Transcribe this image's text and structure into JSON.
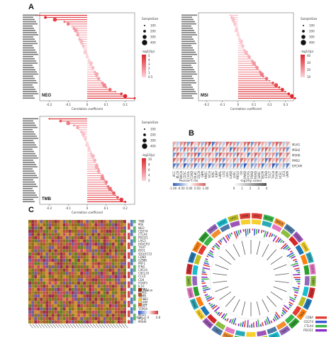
{
  "figure": {
    "panel_labels": [
      "A",
      "B",
      "C"
    ]
  },
  "panel_a": {
    "plots": [
      {
        "name": "NEO",
        "xlabel": "Correlation coefficient",
        "x_ticks": [
          "-0.2",
          "-0.1",
          "0",
          "0.1",
          "0.2"
        ],
        "legend": {
          "size_title": "SampleSize",
          "size_values": [
            "100",
            "200",
            "300",
            "400"
          ],
          "color_title": "-log10(p)",
          "color_values": [
            "5",
            "4",
            "3",
            "2",
            "1",
            "0.5"
          ]
        },
        "values": [
          -0.27,
          -0.22,
          -0.17,
          -0.12,
          -0.1,
          -0.08,
          -0.07,
          -0.06,
          -0.05,
          -0.05,
          -0.04,
          -0.04,
          -0.03,
          -0.03,
          -0.02,
          -0.02,
          -0.01,
          -0.01,
          0,
          0,
          0.01,
          0.01,
          0.02,
          0.02,
          0.03,
          0.03,
          0.04,
          0.05,
          0.05,
          0.06,
          0.07,
          0.08,
          0.09,
          0.1,
          0.12,
          0.15,
          0.18,
          0.2,
          0.25
        ]
      },
      {
        "name": "MSI",
        "xlabel": "Correlation coefficient",
        "x_ticks": [
          "-0.2",
          "-0.1",
          "0",
          "0.1",
          "0.2",
          "0.3"
        ],
        "legend": {
          "size_title": "SampleSize",
          "size_values": [
            "100",
            "200",
            "300",
            "400"
          ],
          "color_title": "-log10(p)",
          "color_values": [
            "40",
            "30",
            "20",
            "10"
          ]
        },
        "values": [
          -0.05,
          -0.04,
          -0.03,
          -0.03,
          -0.02,
          -0.02,
          -0.01,
          -0.01,
          0,
          0,
          0.01,
          0.01,
          0.02,
          0.02,
          0.03,
          0.03,
          0.04,
          0.05,
          0.06,
          0.07,
          0.08,
          0.09,
          0.1,
          0.11,
          0.12,
          0.13,
          0.14,
          0.15,
          0.16,
          0.18,
          0.2,
          0.22,
          0.24,
          0.26,
          0.28,
          0.3,
          0.32,
          0.34,
          0.36
        ]
      },
      {
        "name": "TMB",
        "xlabel": "Correlation coefficient",
        "x_ticks": [
          "-0.2",
          "-0.1",
          "0",
          "0.1",
          "0.2"
        ],
        "legend": {
          "size_title": "SampleSize",
          "size_values": [
            "100",
            "200",
            "300",
            "400"
          ],
          "color_title": "-log10(p)",
          "color_values": [
            "10",
            "8",
            "6",
            "4",
            "2"
          ]
        },
        "values": [
          -0.2,
          -0.14,
          -0.1,
          -0.07,
          -0.05,
          -0.04,
          -0.03,
          -0.02,
          -0.02,
          -0.01,
          -0.01,
          0,
          0,
          0.01,
          0.01,
          0.02,
          0.02,
          0.03,
          0.03,
          0.04,
          0.04,
          0.05,
          0.05,
          0.06,
          0.06,
          0.07,
          0.08,
          0.08,
          0.09,
          0.1,
          0.1,
          0.11,
          0.12,
          0.13,
          0.14,
          0.15,
          0.16,
          0.18,
          0.2
        ]
      }
    ]
  },
  "panel_b": {
    "row_labels": [
      "MLH1",
      "MSH2",
      "MSH6",
      "PMS2",
      "EPCAM"
    ],
    "col_labels": [
      "ACC",
      "BLCA",
      "BRCA",
      "CESC",
      "CHOL",
      "COAD",
      "DLBC",
      "ESCA",
      "GBM",
      "HNSC",
      "KICH",
      "KIRC",
      "KIRP",
      "LAML",
      "LGG",
      "LIHC",
      "LUAD",
      "LUSC",
      "MESO",
      "OV",
      "PAAD",
      "PCPG",
      "PRAD",
      "READ",
      "SARC",
      "SKCM",
      "STAD",
      "TGCT",
      "THCA",
      "THYM",
      "UCEC",
      "UCS",
      "UVM"
    ],
    "legend_title_left": "Pearson's rho",
    "legend_title_right": "-log10(p value)",
    "legend_ticks_left": [
      "-1.00",
      "-0.50",
      "0.00",
      "0.50",
      "1.00"
    ],
    "legend_ticks_right": [
      "0",
      "1",
      "2",
      "3",
      "4"
    ],
    "corr": [
      [
        0.2,
        -0.1,
        0.3,
        0.4,
        -0.3,
        0.5,
        0.1,
        0.3,
        -0.2,
        0.4,
        0.6,
        -0.4,
        0.3,
        0.2,
        -0.1,
        0.5,
        0.4,
        0.3,
        -0.2,
        0.1,
        0.4,
        0.5,
        -0.3,
        0.3,
        0.4,
        0.2,
        0.1,
        -0.2,
        0.3,
        0.5,
        0.4,
        -0.1,
        0.2
      ],
      [
        0.4,
        0.3,
        -0.2,
        0.5,
        0.3,
        0.4,
        -0.3,
        0.2,
        0.4,
        0.3,
        -0.1,
        0.5,
        0.4,
        -0.2,
        0.3,
        0.1,
        -0.4,
        0.5,
        0.3,
        0.2,
        -0.3,
        0.4,
        0.3,
        0.1,
        -0.2,
        0.4,
        0.5,
        0.3,
        -0.1,
        0.2,
        0.3,
        0.4,
        -0.3
      ],
      [
        -0.3,
        0.5,
        0.2,
        -0.1,
        0.4,
        0.3,
        0.5,
        -0.4,
        0.2,
        0.3,
        0.4,
        0.1,
        -0.3,
        0.5,
        0.2,
        0.4,
        0.3,
        -0.2,
        0.5,
        0.3,
        0.1,
        -0.4,
        0.2,
        0.5,
        0.3,
        -0.1,
        0.4,
        0.2,
        0.3,
        -0.3,
        0.5,
        0.1,
        0.4
      ],
      [
        0.5,
        0.2,
        0.4,
        -0.3,
        0.1,
        -0.2,
        0.4,
        0.3,
        0.5,
        -0.1,
        0.2,
        0.3,
        0.5,
        0.4,
        -0.3,
        0.2,
        0.1,
        0.4,
        -0.1,
        0.5,
        0.3,
        0.2,
        0.4,
        -0.2,
        0.1,
        0.3,
        -0.4,
        0.5,
        0.2,
        0.4,
        -0.2,
        0.3,
        0.1
      ],
      [
        -0.4,
        -0.3,
        0.1,
        -0.5,
        -0.2,
        0.3,
        -0.4,
        -0.1,
        -0.3,
        0.2,
        -0.5,
        -0.2,
        0.1,
        -0.3,
        -0.4,
        0.2,
        -0.1,
        -0.3,
        0.4,
        -0.2,
        -0.5,
        0.1,
        -0.3,
        -0.2,
        0.3,
        -0.4,
        -0.1,
        0.2,
        -0.5,
        -0.3,
        0.1,
        -0.2,
        -0.4
      ]
    ]
  },
  "panel_c_left": {
    "rows": 32,
    "cols": 34,
    "side_labels": [
      "TMB",
      "MSI",
      "NEO",
      "CD274",
      "CTLA4",
      "PDCD1",
      "LAG3",
      "HAVCR2",
      "TIGIT",
      "IDO1",
      "SIGLEC15",
      "CD8A",
      "GZMB",
      "PRF1",
      "IFNG",
      "CXCL9",
      "CXCL10",
      "CCL5",
      "CD4",
      "FOXP3",
      "IL10",
      "TGFB1",
      "PTPRC",
      "CD68",
      "CD163",
      "ITGAM",
      "MKI67",
      "TOP2A",
      "EPCAM",
      "MLH1",
      "MSH2",
      "MSH6"
    ],
    "legend_labels": [
      "Pvalue",
      "*",
      "**",
      "***"
    ],
    "legend_colors": [
      "#8a2b0e",
      "#b6522a",
      "#f2c14e",
      "#d5652f"
    ],
    "scale_ticks": [
      "-0.8",
      "0",
      "0.8"
    ]
  },
  "panel_c_right": {
    "outer_labels": [
      "ACC",
      "BLCA",
      "BRCA",
      "CESC",
      "CHOL",
      "COAD",
      "DLBC",
      "ESCA",
      "GBM",
      "HNSC",
      "KICH",
      "KIRC",
      "KIRP",
      "LAML",
      "LGG",
      "LIHC",
      "LUAD",
      "LUSC",
      "MESO",
      "OV",
      "PAAD",
      "PCPG",
      "PRAD",
      "READ",
      "SARC",
      "SKCM",
      "STAD",
      "TGCT",
      "THCA",
      "THYM",
      "UCEC",
      "UCS",
      "UVM"
    ],
    "ring_colors": [
      "#e23c33",
      "#3bb54a",
      "#f28e2b",
      "#4e79a7",
      "#9c55b6",
      "#f7d02f",
      "#2aa9b8",
      "#e377c2",
      "#8cbe3f",
      "#d62728",
      "#1f77b4",
      "#ff7f0e",
      "#2ca02c",
      "#9467bd",
      "#17becf",
      "#bcbd22"
    ],
    "legend": [
      {
        "label": "CD8A",
        "color": "#e23c33"
      },
      {
        "label": "CD274",
        "color": "#3a56d4"
      },
      {
        "label": "CTLA4",
        "color": "#3bb54a"
      },
      {
        "label": "PDCD1",
        "color": "#8b2fc9"
      }
    ]
  }
}
